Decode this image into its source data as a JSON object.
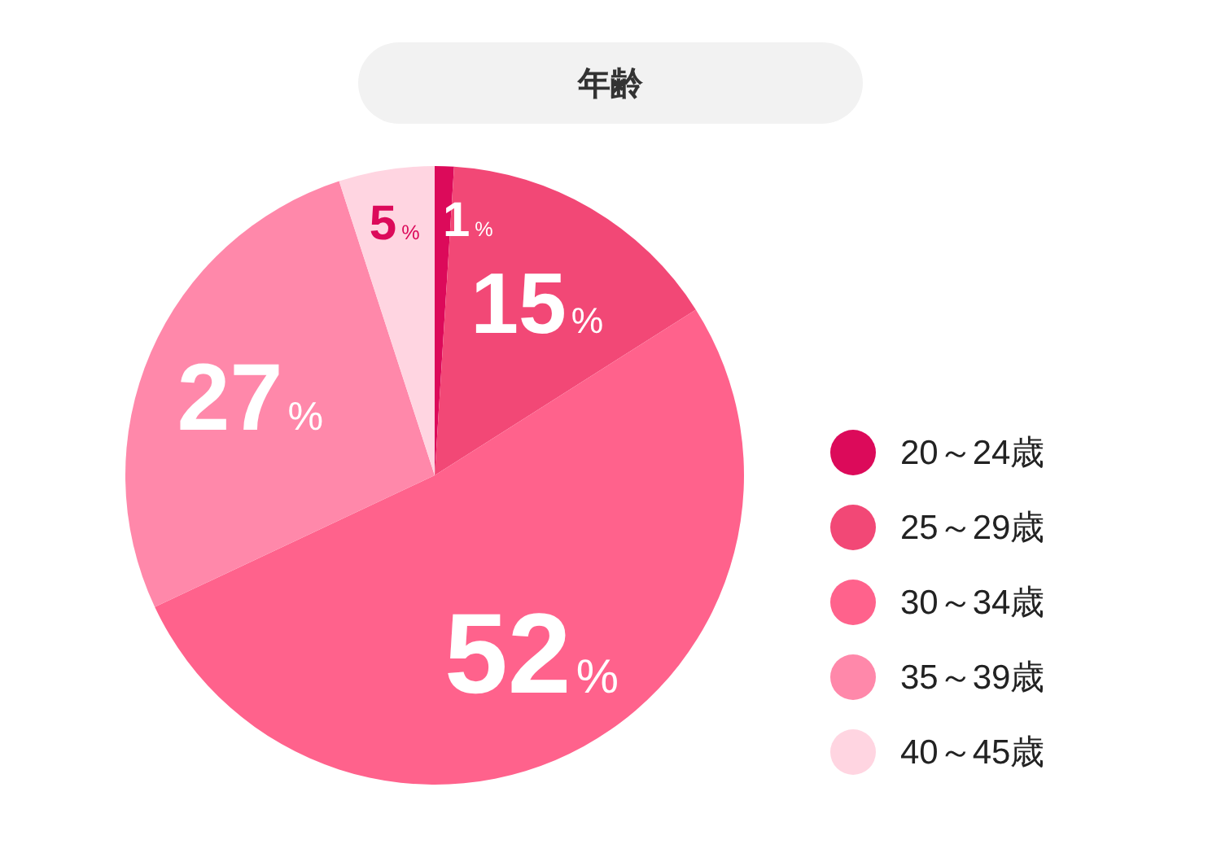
{
  "chart_data": {
    "type": "pie",
    "title": "年齢",
    "categories": [
      "20～24歳",
      "25～29歳",
      "30～34歳",
      "35～39歳",
      "40～45歳"
    ],
    "values": [
      1,
      15,
      52,
      27,
      5
    ],
    "colors": [
      "#dc0a5a",
      "#f24876",
      "#ff628c",
      "#ff88aa",
      "#ffd5e1"
    ],
    "value_labels": [
      "1%",
      "15%",
      "52%",
      "27%",
      "5%"
    ],
    "legend": "right"
  }
}
